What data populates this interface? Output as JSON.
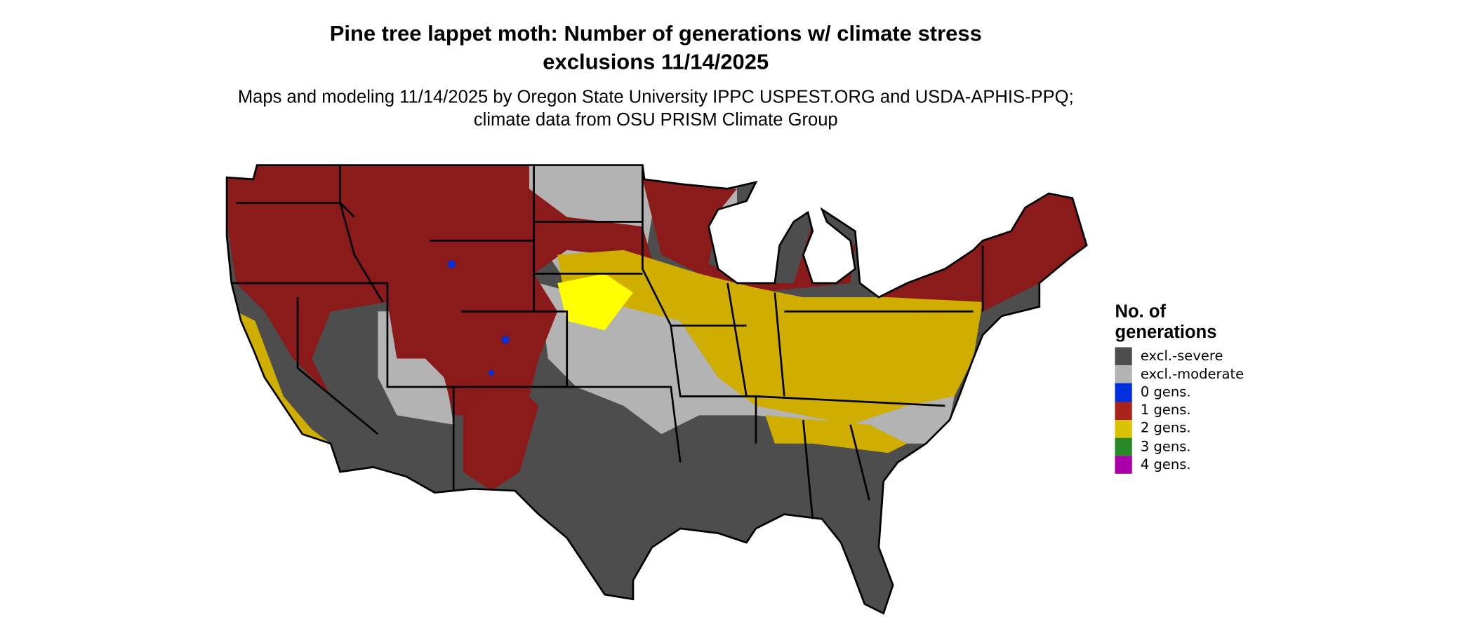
{
  "title": "Pine tree lappet moth: Number of generations w/ climate stress exclusions 11/14/2025",
  "subtitle": "Maps and modeling 11/14/2025 by Oregon State University IPPC USPEST.ORG and USDA-APHIS-PPQ; climate data from OSU PRISM Climate Group",
  "legend": {
    "title": "No. of generations",
    "items": [
      {
        "label": "excl.-severe",
        "color": "#4d4d4d"
      },
      {
        "label": "excl.-moderate",
        "color": "#b3b3b3"
      },
      {
        "label": "0 gens.",
        "color": "#0030dd"
      },
      {
        "label": "1 gens.",
        "color": "#a8241a"
      },
      {
        "label": "2 gens.",
        "color": "#dbc200"
      },
      {
        "label": "3 gens.",
        "color": "#278a27"
      },
      {
        "label": "4 gens.",
        "color": "#a800a8"
      }
    ]
  },
  "map_colors": {
    "severe": "#4d4d4d",
    "moderate": "#b3b3b3",
    "one_gen": "#8b1a1a",
    "two_gen": "#cfae00",
    "bright_yellow": "#ffff00",
    "zero_gen": "#0030dd",
    "border": "#000000"
  }
}
